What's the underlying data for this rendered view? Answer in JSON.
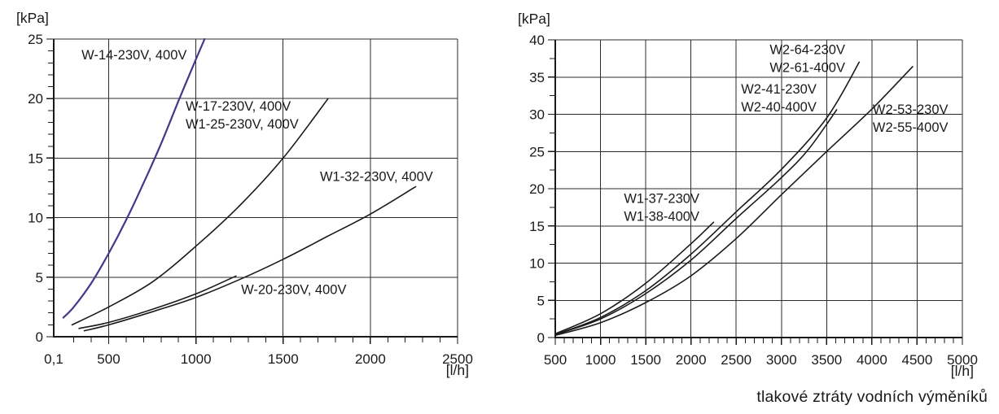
{
  "page": {
    "caption": "tlakové ztráty vodních výměníků"
  },
  "colors": {
    "line": "#1a1a1a",
    "grid": "#2b2b2b",
    "accent_blue": "#3f3a8c",
    "background": "#ffffff"
  },
  "chart_data": [
    {
      "id": "pressure-loss-small-exchangers",
      "type": "line",
      "ylabel": "[kPa]",
      "xlabel": "[l/h]",
      "xmin": 185,
      "xmax": 2500,
      "ymin": 0,
      "ymax": 25,
      "x_origin_label": "0,1",
      "x_major_ticks": [
        500,
        1000,
        1500,
        2000,
        2500
      ],
      "x_minor_step": 100,
      "x_minor_start": 300,
      "y_major_ticks": [
        0,
        5,
        10,
        15,
        20,
        25
      ],
      "y_minor_step": 1,
      "grid": true,
      "legend_position": "inline-labels",
      "series": [
        {
          "name": "W-14-230V, 400V",
          "color": "#3f3a8c",
          "label_lines": [
            "W-14-230V, 400V"
          ],
          "label_anchor": {
            "x": 344,
            "y": 24.3
          },
          "points": [
            [
              240,
              1.6
            ],
            [
              300,
              2.5
            ],
            [
              400,
              4.5
            ],
            [
              500,
              7.0
            ],
            [
              600,
              9.8
            ],
            [
              700,
              12.9
            ],
            [
              800,
              16.2
            ],
            [
              900,
              19.8
            ],
            [
              1000,
              23.3
            ],
            [
              1050,
              25.0
            ]
          ]
        },
        {
          "name": "W-17-230V, 400V / W1-25-230V, 400V",
          "label_lines": [
            "W-17-230V, 400V",
            "W1-25-230V, 400V"
          ],
          "label_anchor": {
            "x": 941,
            "y": 20.0
          },
          "points": [
            [
              290,
              1.0
            ],
            [
              500,
              2.5
            ],
            [
              750,
              4.6
            ],
            [
              1000,
              7.6
            ],
            [
              1250,
              11.0
            ],
            [
              1500,
              15.0
            ],
            [
              1758,
              20.0
            ]
          ]
        },
        {
          "name": "W1-32-230V, 400V",
          "label_lines": [
            "W1-32-230V, 400V"
          ],
          "label_anchor": {
            "x": 1711,
            "y": 14.1
          },
          "points": [
            [
              360,
              0.5
            ],
            [
              500,
              1.0
            ],
            [
              750,
              2.1
            ],
            [
              1000,
              3.3
            ],
            [
              1250,
              4.8
            ],
            [
              1500,
              6.5
            ],
            [
              1750,
              8.4
            ],
            [
              2000,
              10.3
            ],
            [
              2260,
              12.6
            ]
          ]
        },
        {
          "name": "W-20-230V, 400V",
          "label_lines": [
            "W-20-230V, 400V"
          ],
          "label_anchor": {
            "x": 1259,
            "y": 4.6
          },
          "points": [
            [
              330,
              0.7
            ],
            [
              500,
              1.2
            ],
            [
              750,
              2.3
            ],
            [
              1000,
              3.6
            ],
            [
              1230,
              5.1
            ]
          ]
        }
      ]
    },
    {
      "id": "pressure-loss-large-exchangers",
      "type": "line",
      "ylabel": "[kPa]",
      "xlabel": "[l/h]",
      "xmin": 500,
      "xmax": 5000,
      "ymin": 0,
      "ymax": 40,
      "x_major_ticks": [
        500,
        1000,
        1500,
        2000,
        2500,
        3000,
        3500,
        4000,
        4500,
        5000
      ],
      "x_minor_step": 100,
      "x_minor_start": 600,
      "y_major_ticks": [
        0,
        5,
        10,
        15,
        20,
        25,
        30,
        35,
        40
      ],
      "y_minor_step": 2.5,
      "grid": true,
      "legend_position": "inline-labels",
      "series": [
        {
          "name": "W2-64-230V / W2-61-400V",
          "label_lines": [
            "W2-64-230V",
            "W2-61-400V"
          ],
          "label_anchor": {
            "x": 2870,
            "y": 39.7
          },
          "points": [
            [
              500,
              0.4
            ],
            [
              1000,
              2.7
            ],
            [
              1500,
              6.3
            ],
            [
              2000,
              11.2
            ],
            [
              2500,
              16.9
            ],
            [
              3000,
              22.6
            ],
            [
              3500,
              29.5
            ],
            [
              3860,
              37.0
            ]
          ]
        },
        {
          "name": "W2-41-230V / W2-40-400V",
          "label_lines": [
            "W2-41-230V",
            "W2-40-400V"
          ],
          "label_anchor": {
            "x": 2554,
            "y": 34.4
          },
          "points": [
            [
              500,
              0.4
            ],
            [
              1000,
              2.5
            ],
            [
              1500,
              5.9
            ],
            [
              2000,
              10.4
            ],
            [
              2500,
              16.0
            ],
            [
              3000,
              21.5
            ],
            [
              3300,
              25.3
            ],
            [
              3610,
              30.6
            ]
          ]
        },
        {
          "name": "W2-53-230V / W2-55-400V",
          "label_lines": [
            "W2-53-230V",
            "W2-55-400V"
          ],
          "label_anchor": {
            "x": 4009,
            "y": 31.7
          },
          "points": [
            [
              500,
              0.3
            ],
            [
              1000,
              2.0
            ],
            [
              1500,
              4.7
            ],
            [
              2000,
              8.3
            ],
            [
              2500,
              13.3
            ],
            [
              3000,
              19.2
            ],
            [
              3500,
              25.0
            ],
            [
              4000,
              30.7
            ],
            [
              4450,
              36.4
            ]
          ]
        },
        {
          "name": "W1-37-230V / W1-38-400V",
          "label_lines": [
            "W1-37-230V",
            "W1-38-400V"
          ],
          "label_anchor": {
            "x": 1259,
            "y": 19.7
          },
          "points": [
            [
              500,
              0.5
            ],
            [
              1000,
              3.2
            ],
            [
              1500,
              7.3
            ],
            [
              2000,
              12.6
            ],
            [
              2250,
              15.5
            ]
          ]
        }
      ]
    }
  ]
}
